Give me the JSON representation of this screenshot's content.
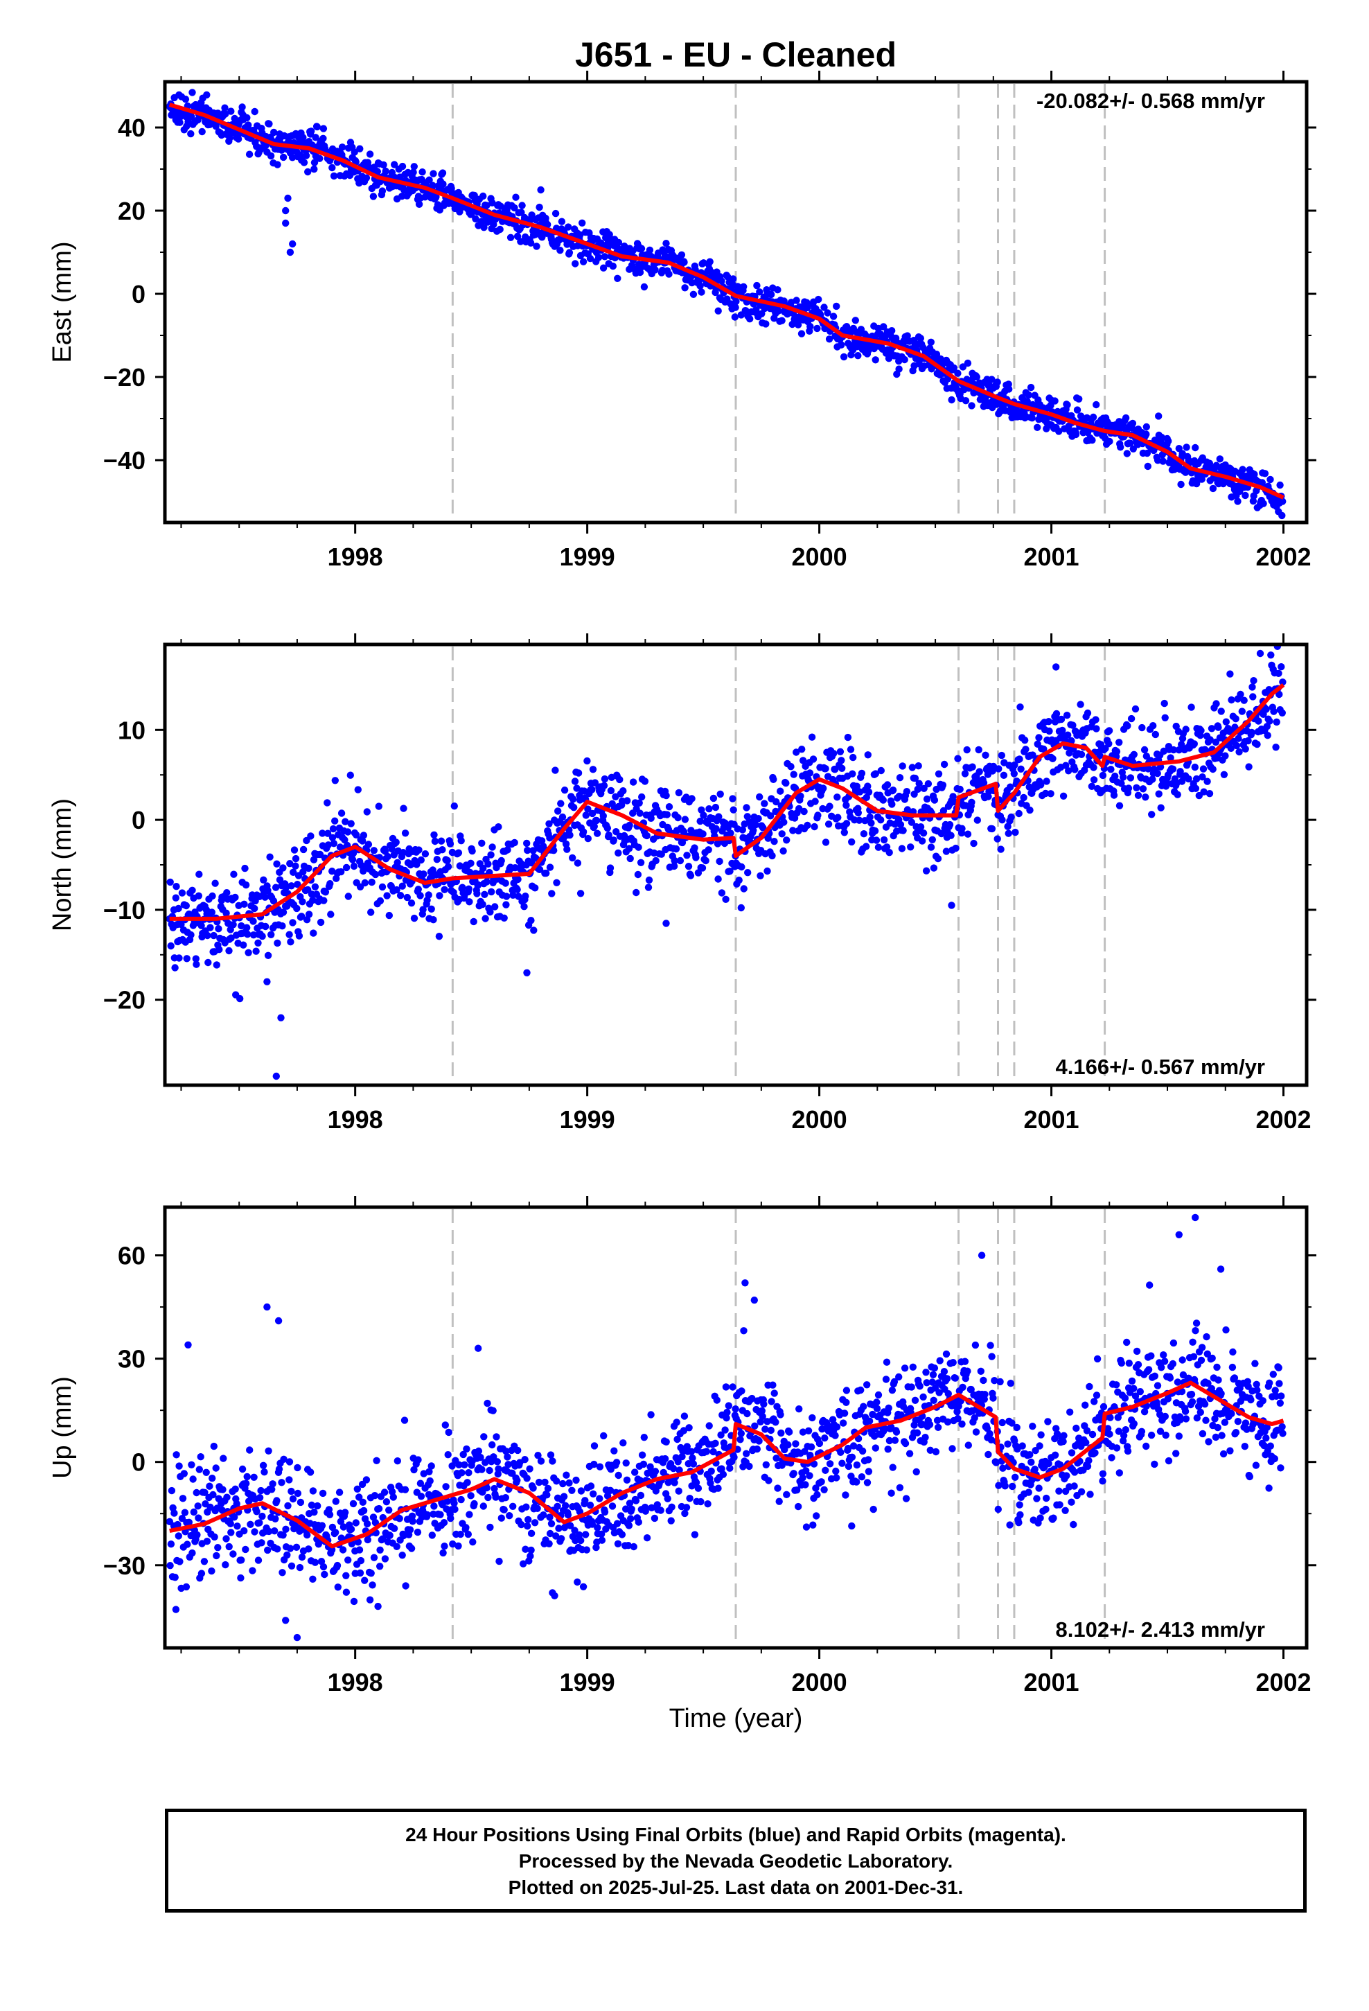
{
  "title": "J651  - EU - Cleaned",
  "xlabel": "Time (year)",
  "x_tick_labels": [
    "1998",
    "1999",
    "2000",
    "2001",
    "2002"
  ],
  "footer": {
    "line1": "24 Hour Positions Using Final Orbits (blue) and Rapid Orbits (magenta).",
    "line2": "Processed by the Nevada Geodetic Laboratory.",
    "line3": "Plotted on 2025-Jul-25. Last data on 2001-Dec-31."
  },
  "colors": {
    "points": "#0000ff",
    "model": "#ff0000",
    "steps": "#c0c0c0",
    "axes": "#000000"
  },
  "chart_data": [
    {
      "type": "scatter",
      "component": "east",
      "ylabel": "East (mm)",
      "velocity_label": "-20.082+/- 0.568 mm/yr",
      "velocity_position": "top-right",
      "xlim": [
        1997.18,
        2002.1
      ],
      "ylim": [
        -55,
        51
      ],
      "y_ticks": [
        -40,
        -20,
        0,
        20,
        40
      ],
      "y_tick_labels": [
        "−40",
        "−20",
        "0",
        "20",
        "40"
      ],
      "x_ticks": [
        1998,
        1999,
        2000,
        2001,
        2002
      ],
      "step_lines_x": [
        1998.42,
        1999.64,
        2000.6,
        2000.77,
        2000.84,
        2001.23
      ],
      "noise_sd": 2.2,
      "model_line": [
        [
          1997.2,
          45.5
        ],
        [
          1997.35,
          43
        ],
        [
          1997.5,
          39.5
        ],
        [
          1997.65,
          36
        ],
        [
          1997.8,
          35
        ],
        [
          1997.95,
          32
        ],
        [
          1998.1,
          28
        ],
        [
          1998.3,
          25.5
        ],
        [
          1998.42,
          23
        ],
        [
          1998.6,
          19
        ],
        [
          1998.8,
          16
        ],
        [
          1999.0,
          12
        ],
        [
          1999.15,
          9
        ],
        [
          1999.35,
          7.5
        ],
        [
          1999.5,
          4
        ],
        [
          1999.64,
          -0.5
        ],
        [
          1999.85,
          -3
        ],
        [
          2000.0,
          -6
        ],
        [
          2000.1,
          -10
        ],
        [
          2000.3,
          -12
        ],
        [
          2000.45,
          -15
        ],
        [
          2000.6,
          -21
        ],
        [
          2000.77,
          -25
        ],
        [
          2000.84,
          -26.5
        ],
        [
          2001.0,
          -29
        ],
        [
          2001.1,
          -31
        ],
        [
          2001.23,
          -33
        ],
        [
          2001.35,
          -34
        ],
        [
          2001.5,
          -38
        ],
        [
          2001.6,
          -42
        ],
        [
          2001.75,
          -44
        ],
        [
          2001.9,
          -46.5
        ],
        [
          2002.0,
          -49
        ]
      ],
      "outliers": [
        [
          1997.72,
          10
        ],
        [
          1997.73,
          12
        ],
        [
          1997.7,
          17
        ],
        [
          1997.7,
          20
        ],
        [
          1997.71,
          23
        ],
        [
          1998.8,
          25
        ],
        [
          2001.62,
          -37
        ]
      ]
    },
    {
      "type": "scatter",
      "component": "north",
      "ylabel": "North (mm)",
      "velocity_label": "4.166+/- 0.567 mm/yr",
      "velocity_position": "bottom-right",
      "xlim": [
        1997.18,
        2002.1
      ],
      "ylim": [
        -29.5,
        19.5
      ],
      "y_ticks": [
        -20,
        -10,
        0,
        10
      ],
      "y_tick_labels": [
        "−20",
        "−10",
        "0",
        "10"
      ],
      "x_ticks": [
        1998,
        1999,
        2000,
        2001,
        2002
      ],
      "step_lines_x": [
        1998.42,
        1999.64,
        2000.6,
        2000.77,
        2000.84,
        2001.23
      ],
      "noise_sd": 2.6,
      "model_line": [
        [
          1997.2,
          -11
        ],
        [
          1997.4,
          -11
        ],
        [
          1997.6,
          -10.5
        ],
        [
          1997.75,
          -8
        ],
        [
          1997.9,
          -4
        ],
        [
          1998.0,
          -3
        ],
        [
          1998.15,
          -5.5
        ],
        [
          1998.3,
          -7
        ],
        [
          1998.42,
          -6.5
        ],
        [
          1998.55,
          -6.3
        ],
        [
          1998.75,
          -6
        ],
        [
          1998.9,
          -1
        ],
        [
          1999.0,
          2
        ],
        [
          1999.15,
          0.5
        ],
        [
          1999.3,
          -1.5
        ],
        [
          1999.5,
          -2.2
        ],
        [
          1999.63,
          -2
        ],
        [
          1999.64,
          -4
        ],
        [
          1999.75,
          -2
        ],
        [
          1999.9,
          3
        ],
        [
          2000.0,
          4.5
        ],
        [
          2000.1,
          3.5
        ],
        [
          2000.25,
          1
        ],
        [
          2000.4,
          0.5
        ],
        [
          2000.59,
          0.5
        ],
        [
          2000.6,
          2.5
        ],
        [
          2000.76,
          4
        ],
        [
          2000.77,
          1
        ],
        [
          2000.84,
          3
        ],
        [
          2000.95,
          7
        ],
        [
          2001.05,
          8.5
        ],
        [
          2001.15,
          8
        ],
        [
          2001.22,
          6
        ],
        [
          2001.23,
          7
        ],
        [
          2001.35,
          6
        ],
        [
          2001.55,
          6.5
        ],
        [
          2001.7,
          7.5
        ],
        [
          2001.85,
          11
        ],
        [
          2001.95,
          14
        ],
        [
          2002.0,
          15
        ]
      ],
      "outliers": [
        [
          1997.68,
          -22
        ],
        [
          1997.66,
          -28.5
        ],
        [
          1997.62,
          -18
        ],
        [
          2001.9,
          18.5
        ],
        [
          2001.02,
          17
        ],
        [
          1998.74,
          -17
        ],
        [
          2000.57,
          -9.5
        ],
        [
          1999.34,
          -11.5
        ]
      ]
    },
    {
      "type": "scatter",
      "component": "up",
      "ylabel": "Up (mm)",
      "velocity_label": "8.102+/- 2.413 mm/yr",
      "velocity_position": "bottom-right",
      "xlim": [
        1997.18,
        2002.1
      ],
      "ylim": [
        -54,
        74
      ],
      "y_ticks": [
        -30,
        0,
        30,
        60
      ],
      "y_tick_labels": [
        "−30",
        "0",
        "30",
        "60"
      ],
      "x_ticks": [
        1998,
        1999,
        2000,
        2001,
        2002
      ],
      "step_lines_x": [
        1998.42,
        1999.64,
        2000.6,
        2000.77,
        2000.84,
        2001.23
      ],
      "noise_sd": 8.5,
      "model_line": [
        [
          1997.2,
          -20
        ],
        [
          1997.35,
          -18
        ],
        [
          1997.5,
          -13.5
        ],
        [
          1997.6,
          -12
        ],
        [
          1997.75,
          -17
        ],
        [
          1997.9,
          -24.5
        ],
        [
          1998.05,
          -21
        ],
        [
          1998.2,
          -14
        ],
        [
          1998.35,
          -11
        ],
        [
          1998.5,
          -8
        ],
        [
          1998.6,
          -5
        ],
        [
          1998.75,
          -9
        ],
        [
          1998.9,
          -17.5
        ],
        [
          1999.0,
          -15
        ],
        [
          1999.15,
          -9
        ],
        [
          1999.3,
          -5
        ],
        [
          1999.45,
          -3
        ],
        [
          1999.63,
          3.5
        ],
        [
          1999.64,
          11
        ],
        [
          1999.75,
          8
        ],
        [
          1999.85,
          1
        ],
        [
          1999.95,
          0
        ],
        [
          2000.1,
          5
        ],
        [
          2000.2,
          10
        ],
        [
          2000.35,
          12
        ],
        [
          2000.5,
          16
        ],
        [
          2000.6,
          19.5
        ],
        [
          2000.76,
          13
        ],
        [
          2000.77,
          3
        ],
        [
          2000.84,
          -2
        ],
        [
          2000.95,
          -4.5
        ],
        [
          2001.05,
          -2
        ],
        [
          2001.22,
          7
        ],
        [
          2001.23,
          14
        ],
        [
          2001.35,
          16
        ],
        [
          2001.5,
          20
        ],
        [
          2001.6,
          23
        ],
        [
          2001.75,
          17
        ],
        [
          2001.85,
          13
        ],
        [
          2001.95,
          11
        ],
        [
          2002.0,
          12
        ]
      ],
      "outliers": [
        [
          1997.62,
          45
        ],
        [
          1997.67,
          41
        ],
        [
          1997.28,
          34
        ],
        [
          1998.53,
          33
        ],
        [
          1999.68,
          52
        ],
        [
          1999.72,
          47
        ],
        [
          2000.7,
          60
        ],
        [
          2001.62,
          71
        ],
        [
          2001.55,
          66
        ],
        [
          2001.73,
          56
        ],
        [
          1997.7,
          -46
        ],
        [
          1997.75,
          -51
        ],
        [
          1998.85,
          -38
        ]
      ]
    }
  ]
}
